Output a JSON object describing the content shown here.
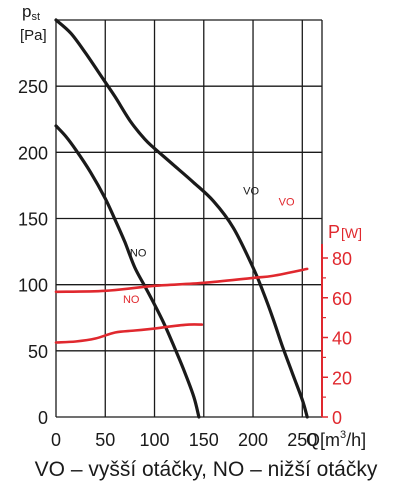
{
  "caption": "VO – vyšší otáčky, NO – nižší otáčky",
  "chart_data": {
    "type": "line",
    "grid": true,
    "x_axis": {
      "label": "Q[m³/h]",
      "label_main": "Q[m",
      "label_sup": "3",
      "label_tail": "/h]",
      "ticks": [
        0,
        50,
        100,
        150,
        200,
        250
      ],
      "range": [
        0,
        270
      ]
    },
    "y_axis_left": {
      "label_main": "p",
      "label_sub": "st",
      "unit": "[Pa]",
      "ticks": [
        0,
        50,
        100,
        150,
        200,
        250
      ],
      "range": [
        0,
        300
      ]
    },
    "y_axis_right": {
      "label_main": "P",
      "label_unit": "[W]",
      "ticks": [
        0,
        20,
        40,
        60,
        80
      ],
      "range": [
        0,
        80
      ]
    },
    "colors": {
      "pressure": "#1a1a1a",
      "power": "#e0282e",
      "grid": "#1a1a1a"
    },
    "series": [
      {
        "name": "VO",
        "axis": "left",
        "label_at": [
          190,
          172
        ],
        "points": [
          [
            0,
            300
          ],
          [
            15,
            290
          ],
          [
            30,
            275
          ],
          [
            50,
            253
          ],
          [
            60,
            242
          ],
          [
            75,
            224
          ],
          [
            90,
            210
          ],
          [
            100,
            203
          ],
          [
            120,
            190
          ],
          [
            140,
            177
          ],
          [
            160,
            163
          ],
          [
            180,
            143
          ],
          [
            200,
            113
          ],
          [
            210,
            95
          ],
          [
            220,
            75
          ],
          [
            230,
            53
          ],
          [
            240,
            33
          ],
          [
            250,
            13
          ],
          [
            255,
            0
          ]
        ]
      },
      {
        "name": "NO",
        "axis": "left",
        "label_at": [
          75,
          125
        ],
        "points": [
          [
            0,
            220
          ],
          [
            10,
            212
          ],
          [
            20,
            202
          ],
          [
            35,
            185
          ],
          [
            50,
            165
          ],
          [
            60,
            149
          ],
          [
            70,
            132
          ],
          [
            80,
            113
          ],
          [
            90,
            99
          ],
          [
            100,
            85
          ],
          [
            110,
            70
          ],
          [
            120,
            53
          ],
          [
            130,
            35
          ],
          [
            140,
            15
          ],
          [
            145,
            0
          ]
        ]
      },
      {
        "name": "VO",
        "axis": "right",
        "label_at": [
          226,
          109
        ],
        "points": [
          [
            0,
            63
          ],
          [
            50,
            63.5
          ],
          [
            100,
            66
          ],
          [
            150,
            67.5
          ],
          [
            200,
            70
          ],
          [
            220,
            71
          ],
          [
            255,
            74.5
          ]
        ]
      },
      {
        "name": "NO",
        "axis": "right",
        "label_at": [
          68,
          60
        ],
        "points": [
          [
            0,
            37.5
          ],
          [
            20,
            38
          ],
          [
            40,
            39.5
          ],
          [
            60,
            42.5
          ],
          [
            80,
            43.5
          ],
          [
            100,
            44.5
          ],
          [
            115,
            45.5
          ],
          [
            135,
            46.5
          ],
          [
            148,
            46.5
          ]
        ]
      }
    ]
  }
}
